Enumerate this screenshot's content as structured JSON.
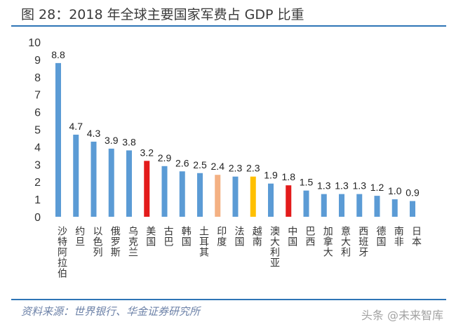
{
  "title": "图 28：2018 年全球主要国家军费占 GDP 比重",
  "source": "资料来源：世界银行、华金证券研究所",
  "watermark": "头条 @未来智库",
  "colors": {
    "default": "#5b9bd5",
    "highlight_red": "#e31b1b",
    "salmon": "#f4b183",
    "yellow": "#ffc000",
    "rule": "#2e75b6"
  },
  "chart_data": {
    "type": "bar",
    "categories": [
      "沙特阿拉伯",
      "约旦",
      "以色列",
      "俄罗斯",
      "乌克兰",
      "美国",
      "古巴",
      "韩国",
      "土耳其",
      "印度",
      "法国",
      "越南",
      "澳大利亚",
      "中国",
      "巴西",
      "加拿大",
      "意大利",
      "西班牙",
      "德国",
      "南非",
      "日本"
    ],
    "values": [
      8.8,
      4.7,
      4.3,
      3.9,
      3.8,
      3.2,
      2.9,
      2.6,
      2.5,
      2.4,
      2.3,
      2.3,
      1.9,
      1.8,
      1.5,
      1.3,
      1.3,
      1.3,
      1.2,
      1.0,
      0.9
    ],
    "bar_colors": [
      "default",
      "default",
      "default",
      "default",
      "default",
      "highlight_red",
      "default",
      "default",
      "default",
      "salmon",
      "default",
      "yellow",
      "default",
      "highlight_red",
      "default",
      "default",
      "default",
      "default",
      "default",
      "default",
      "default"
    ],
    "ylim": [
      0,
      10
    ],
    "yticks": [
      0,
      1,
      2,
      3,
      4,
      5,
      6,
      7,
      8,
      9,
      10
    ],
    "grid": false,
    "legend": "none",
    "data_labels": true
  }
}
